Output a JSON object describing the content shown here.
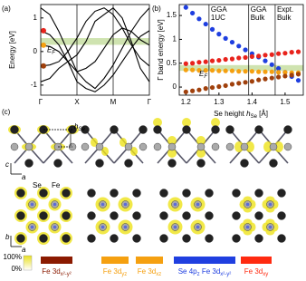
{
  "chart_data": [
    {
      "type": "line",
      "label": "(a)",
      "y_label": "Energy [eV]",
      "categories": [
        "Γ",
        "X",
        "M",
        "Γ"
      ],
      "x": [
        0,
        0.25,
        0.5,
        0.75,
        1,
        1.25,
        1.5,
        1.75,
        2,
        2.25,
        2.5,
        2.75,
        3
      ],
      "ylim": [
        -1.3,
        1.4
      ],
      "yticks": [
        1,
        0,
        -1
      ],
      "fermi_band": [
        0.2,
        0.4
      ],
      "fermi_label": {
        "main": "E",
        "sub": "F"
      },
      "series": [
        {
          "color": "#000000",
          "values": [
            1.3,
            1.1,
            0.6,
            0.0,
            -0.6,
            -0.9,
            -1.1,
            -0.8,
            -0.4,
            0.1,
            0.6,
            1.0,
            1.3
          ]
        },
        {
          "color": "#000000",
          "values": [
            0.62,
            0.5,
            0.2,
            -0.3,
            -0.9,
            -1.1,
            -1.2,
            -1.0,
            -0.7,
            -0.3,
            0.1,
            0.45,
            0.62
          ]
        },
        {
          "color": "#000000",
          "values": [
            0.19,
            0.15,
            0.0,
            -0.3,
            -0.6,
            -0.5,
            -0.3,
            0.1,
            0.5,
            0.7,
            0.6,
            0.35,
            0.19
          ]
        },
        {
          "color": "#000000",
          "values": [
            -0.43,
            -0.4,
            -0.3,
            0.0,
            0.4,
            0.9,
            1.2,
            1.3,
            1.1,
            0.7,
            0.2,
            -0.2,
            -0.43
          ]
        },
        {
          "color": "#000000",
          "values": [
            -0.9,
            -0.8,
            -0.5,
            -0.3,
            -0.1,
            0.3,
            0.9,
            1.1,
            1.3,
            1.0,
            0.3,
            -0.5,
            -0.9
          ]
        }
      ],
      "markers": [
        {
          "color": "#e8231c",
          "value": 0.62
        },
        {
          "color": "#f5a010",
          "value": 0.19
        },
        {
          "color": "#a0400c",
          "value": -0.43
        }
      ]
    },
    {
      "type": "scatter",
      "label": "(b)",
      "y_label": "Γ band energy [eV]",
      "x_label": {
        "text": "Se height ",
        "var": "h",
        "sub": "Se",
        "unit": " [Å]"
      },
      "x": [
        1.2,
        1.22,
        1.24,
        1.26,
        1.28,
        1.3,
        1.32,
        1.34,
        1.36,
        1.38,
        1.4,
        1.42,
        1.44,
        1.46,
        1.48,
        1.5,
        1.52,
        1.54
      ],
      "xlim": [
        1.18,
        1.555
      ],
      "ylim": [
        -0.17,
        1.73
      ],
      "xticks": [
        1.2,
        1.3,
        1.4,
        1.5
      ],
      "yticks": [
        0,
        0.5,
        1,
        1.5
      ],
      "fermi_band": [
        0.34,
        0.46
      ],
      "fermi_label": {
        "main": "E",
        "sub": "F"
      },
      "ref_lines": [
        {
          "x": 1.27,
          "label": [
            "GGA",
            "1UC"
          ]
        },
        {
          "x": 1.39,
          "label": [
            "GGA",
            "Bulk"
          ]
        },
        {
          "x": 1.47,
          "label": [
            "Expt.",
            "Bulk"
          ]
        }
      ],
      "series": [
        {
          "color": "#1f3fe0",
          "values": [
            1.67,
            1.55,
            1.43,
            1.32,
            1.21,
            1.11,
            1.02,
            0.94,
            0.86,
            0.78,
            0.7,
            0.63,
            0.55,
            0.47,
            0.39,
            0.31,
            0.22,
            0.14
          ]
        },
        {
          "color": "#e8231c",
          "values": [
            0.49,
            0.5,
            0.52,
            0.53,
            0.55,
            0.56,
            0.58,
            0.59,
            0.61,
            0.62,
            0.64,
            0.65,
            0.67,
            0.68,
            0.7,
            0.71,
            0.73,
            0.74
          ]
        },
        {
          "color": "#f5a010",
          "values": [
            0.36,
            0.36,
            0.35,
            0.35,
            0.35,
            0.34,
            0.34,
            0.34,
            0.33,
            0.33,
            0.33,
            0.32,
            0.32,
            0.32,
            0.31,
            0.31,
            0.3,
            0.3
          ]
        },
        {
          "color": "#a0400c",
          "values": [
            -0.1,
            -0.08,
            -0.06,
            -0.03,
            -0.01,
            0.01,
            0.03,
            0.06,
            0.08,
            0.1,
            0.12,
            0.15,
            0.17,
            0.19,
            0.21,
            0.23,
            0.25,
            0.27
          ]
        }
      ]
    }
  ],
  "figure_c": {
    "label": "(c)",
    "h_label": {
      "var": "h",
      "sub": "Se"
    },
    "side_axes": {
      "up": "c",
      "right": "a"
    },
    "top_axes": {
      "up": "b",
      "right": "a"
    },
    "atom_labels": [
      "Se",
      "Fe"
    ],
    "colorbar": [
      "100%",
      "0%"
    ],
    "orbitals": [
      {
        "color": "#8b1a00",
        "parts": [
          {
            "main": "Fe 3d",
            "sub": "x²-y²"
          }
        ]
      },
      {
        "color": "#f5a010",
        "parts": [
          {
            "main": "Fe 3d",
            "sub": "yz"
          }
        ]
      },
      {
        "color": "#f5a010",
        "parts": [
          {
            "main": "Fe 3d",
            "sub": "xz"
          }
        ]
      },
      {
        "color": "#1f3fe0",
        "parts": [
          {
            "main": "Se 4p",
            "sub": "z"
          },
          {
            "main": " Fe 3d",
            "sub": "x²-y²"
          }
        ]
      },
      {
        "color": "#ff2a10",
        "parts": [
          {
            "main": "Fe 3d",
            "sub": "xy"
          }
        ]
      }
    ]
  }
}
